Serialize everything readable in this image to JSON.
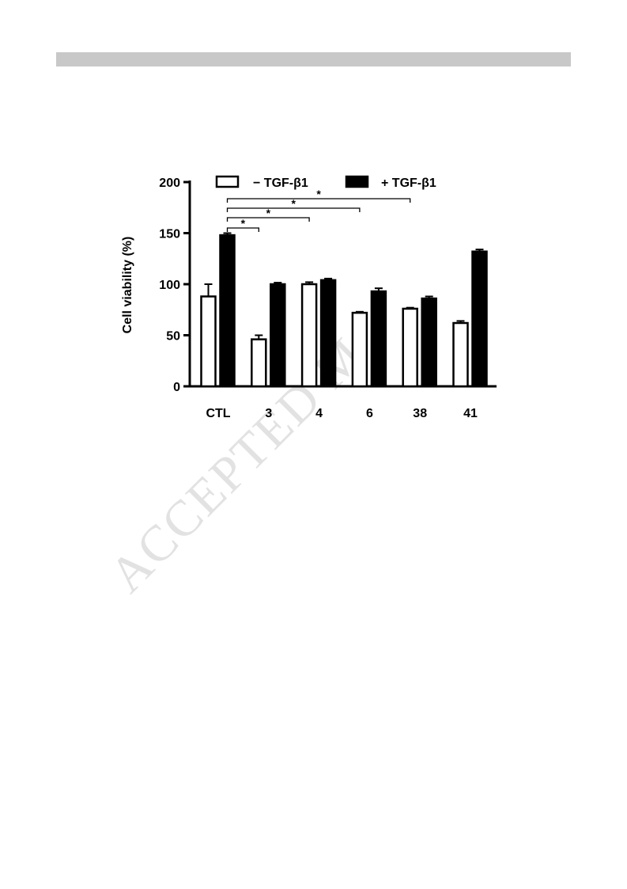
{
  "page": {
    "watermark": "ACCEPTED M"
  },
  "chart_data": {
    "type": "bar",
    "title": "",
    "xlabel": "",
    "ylabel": "Cell viability (%)",
    "ylim": [
      0,
      200
    ],
    "yticks": [
      0,
      50,
      100,
      150,
      200
    ],
    "categories": [
      "CTL",
      "3",
      "4",
      "6",
      "38",
      "41"
    ],
    "legend_position": "top",
    "series": [
      {
        "name": "− TGF-β1",
        "fill": "#ffffff",
        "values": [
          88,
          46,
          100,
          72,
          76,
          62
        ],
        "errors": [
          12,
          4,
          2,
          1,
          1,
          2
        ]
      },
      {
        "name": "+ TGF-β1",
        "fill": "#000000",
        "values": [
          148,
          100,
          104,
          93,
          86,
          132
        ],
        "errors": [
          2,
          1.5,
          1.5,
          3,
          2,
          2
        ]
      }
    ],
    "significance": [
      {
        "from": "CTL",
        "to": "3",
        "label": "*"
      },
      {
        "from": "CTL",
        "to": "4",
        "label": "*"
      },
      {
        "from": "CTL",
        "to": "6",
        "label": "*"
      },
      {
        "from": "CTL",
        "to": "38",
        "label": "*"
      }
    ]
  }
}
